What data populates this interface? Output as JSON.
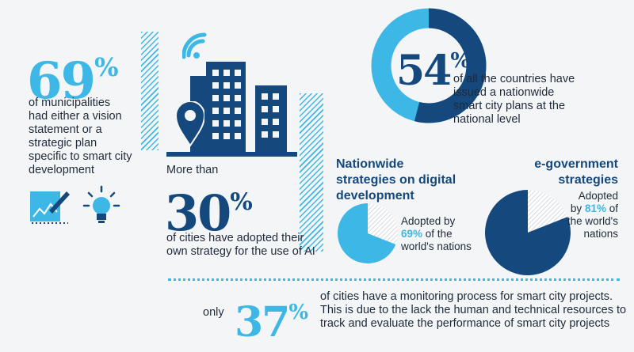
{
  "colors": {
    "navy": "#15497e",
    "cyan": "#3db8e6",
    "text": "#1f2a3a",
    "grey": "#c9ced4"
  },
  "stat1": {
    "value": "69",
    "unit": "%",
    "text": [
      "of municipalities",
      "had either a vision",
      "statement or a",
      "strategic plan",
      "specific to smart city",
      "development"
    ]
  },
  "icons": [
    "pen-icon",
    "lightbulb-icon",
    "wifi-icon",
    "city-buildings-icon",
    "location-pin-icon"
  ],
  "stat2": {
    "prefix": "More than",
    "value": "30",
    "unit": "%",
    "text": [
      "of cities have adopted their",
      "own strategy for the use of AI"
    ]
  },
  "stat3": {
    "value": "54",
    "unit": "%",
    "text": [
      "of all the countries have",
      "issued a nationwide",
      "smart city plans at the",
      "national level"
    ]
  },
  "stat4": {
    "title": [
      "Nationwide",
      "strategies on digital",
      "development"
    ],
    "text_a": "Adopted by",
    "pct": "69%",
    "text_b": "of the",
    "text_c": "world's nations"
  },
  "stat5": {
    "title": [
      "e-government",
      "strategies"
    ],
    "text_a": "Adopted",
    "text_b1": "by",
    "pct": "81%",
    "text_b2": "of",
    "text_c": "the world's",
    "text_d": "nations"
  },
  "stat6": {
    "prefix": "only",
    "value": "37",
    "unit": "%",
    "text": [
      "of cities have a monitoring process for smart city projects.",
      "This is due to the lack the human and technical resources to",
      "track and evaluate the performance of smart city projects"
    ]
  },
  "chart_data": [
    {
      "type": "pie",
      "title": "54%",
      "values": [
        54,
        46
      ]
    },
    {
      "type": "pie",
      "title": "Nationwide strategies on digital development",
      "values": [
        69,
        31
      ]
    },
    {
      "type": "pie",
      "title": "e-government strategies",
      "values": [
        81,
        19
      ]
    }
  ]
}
